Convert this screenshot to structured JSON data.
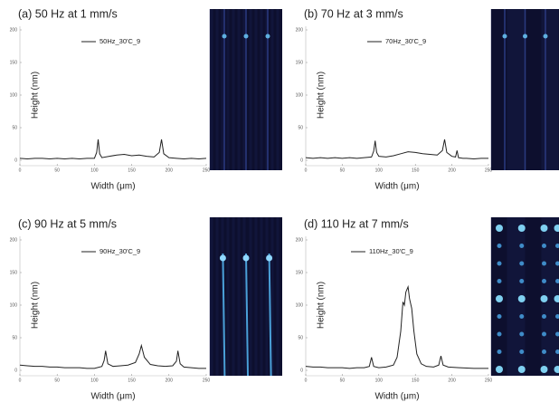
{
  "chart_data": [
    {
      "type": "line",
      "title": "(a) 50 Hz at 1 mm/s",
      "x_label": "Width (μm)",
      "y_label": "Height (nm)",
      "xlim": [
        0,
        250
      ],
      "xticks": [
        0,
        50,
        100,
        150,
        200,
        250
      ],
      "ylim": [
        0,
        200
      ],
      "yticks": [
        0,
        50,
        100,
        150,
        200
      ],
      "legend": "upper center",
      "x": [
        0,
        10,
        20,
        30,
        40,
        50,
        60,
        70,
        80,
        90,
        100,
        103,
        105,
        107,
        110,
        120,
        130,
        140,
        150,
        160,
        170,
        180,
        187,
        190,
        193,
        200,
        210,
        220,
        230,
        240,
        250
      ],
      "series": [
        {
          "name": "50Hz_30'C_9",
          "color": "#222222",
          "values": [
            3,
            2,
            3,
            3,
            2,
            3,
            2,
            3,
            2,
            3,
            3,
            12,
            32,
            10,
            4,
            6,
            8,
            9,
            7,
            8,
            6,
            5,
            12,
            32,
            10,
            4,
            3,
            2,
            3,
            2,
            3
          ]
        }
      ]
    },
    {
      "type": "line",
      "title": "(b) 70 Hz at 3 mm/s",
      "x_label": "Width (μm)",
      "y_label": "Height (nm)",
      "xlim": [
        0,
        250
      ],
      "xticks": [
        0,
        50,
        100,
        150,
        200,
        250
      ],
      "ylim": [
        0,
        200
      ],
      "yticks": [
        0,
        50,
        100,
        150,
        200
      ],
      "legend": "upper center",
      "x": [
        0,
        10,
        20,
        30,
        40,
        50,
        60,
        70,
        80,
        90,
        93,
        95,
        97,
        100,
        110,
        120,
        130,
        140,
        150,
        160,
        170,
        180,
        187,
        190,
        193,
        200,
        205,
        207,
        209,
        215,
        220,
        230,
        240,
        250
      ],
      "series": [
        {
          "name": "70Hz_30'C_9",
          "color": "#222222",
          "values": [
            4,
            3,
            4,
            3,
            4,
            3,
            4,
            3,
            4,
            5,
            14,
            30,
            12,
            6,
            5,
            7,
            10,
            13,
            12,
            10,
            9,
            8,
            15,
            32,
            12,
            6,
            5,
            15,
            4,
            3,
            3,
            2,
            3,
            3
          ]
        }
      ]
    },
    {
      "type": "line",
      "title": "(c) 90 Hz at 5 mm/s",
      "x_label": "Width (μm)",
      "y_label": "Height (nm)",
      "xlim": [
        0,
        250
      ],
      "xticks": [
        0,
        50,
        100,
        150,
        200,
        250
      ],
      "ylim": [
        0,
        200
      ],
      "yticks": [
        0,
        50,
        100,
        150,
        200
      ],
      "legend": "upper center",
      "x": [
        0,
        10,
        20,
        30,
        40,
        50,
        60,
        70,
        80,
        90,
        100,
        110,
        113,
        115,
        118,
        125,
        135,
        145,
        155,
        160,
        163,
        167,
        175,
        185,
        195,
        205,
        210,
        212,
        215,
        220,
        230,
        240,
        250
      ],
      "series": [
        {
          "name": "90Hz_30'C_9",
          "color": "#222222",
          "values": [
            8,
            7,
            6,
            6,
            5,
            5,
            4,
            4,
            4,
            3,
            3,
            6,
            15,
            30,
            10,
            6,
            7,
            8,
            12,
            25,
            38,
            20,
            9,
            7,
            6,
            7,
            14,
            30,
            10,
            5,
            4,
            3,
            3
          ]
        }
      ]
    },
    {
      "type": "line",
      "title": "(d) 110 Hz at 7 mm/s",
      "x_label": "Width (μm)",
      "y_label": "Height (nm)",
      "xlim": [
        0,
        250
      ],
      "xticks": [
        0,
        50,
        100,
        150,
        200,
        250
      ],
      "ylim": [
        0,
        200
      ],
      "yticks": [
        0,
        50,
        100,
        150,
        200
      ],
      "legend": "upper left",
      "x": [
        0,
        10,
        20,
        30,
        40,
        50,
        60,
        70,
        80,
        87,
        90,
        93,
        100,
        110,
        120,
        125,
        130,
        133,
        135,
        137,
        140,
        142,
        145,
        148,
        152,
        158,
        165,
        175,
        182,
        185,
        188,
        195,
        210,
        230,
        250
      ],
      "series": [
        {
          "name": "110Hz_30'C_9",
          "color": "#222222",
          "values": [
            6,
            5,
            5,
            4,
            4,
            4,
            3,
            4,
            4,
            6,
            20,
            6,
            4,
            5,
            8,
            20,
            60,
            105,
            100,
            120,
            128,
            110,
            95,
            60,
            25,
            10,
            6,
            5,
            8,
            22,
            8,
            5,
            4,
            3,
            3
          ]
        }
      ]
    }
  ]
}
